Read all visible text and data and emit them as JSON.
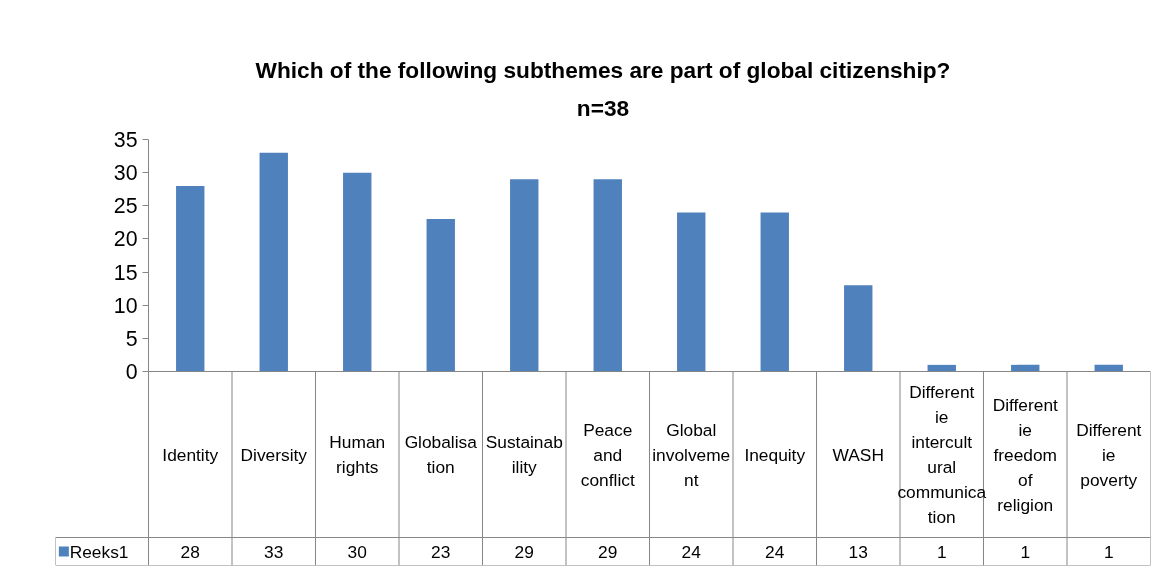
{
  "chart_data": {
    "type": "bar",
    "title": "Which of the following subthemes are part of global citizenship?",
    "subtitle": "n=38",
    "categories": [
      "Identity",
      "Diversity",
      "Human rights",
      "Globalisation",
      "Sustainability",
      "Peace and conflict",
      "Global involvement",
      "Inequity",
      "WASH",
      "Differentie intercultural communication",
      "Differentie freedom of religion",
      "Differentie poverty"
    ],
    "series": [
      {
        "name": "Reeks1",
        "color": "#4f81bd",
        "values": [
          28,
          33,
          30,
          23,
          29,
          29,
          24,
          24,
          13,
          1,
          1,
          1
        ]
      }
    ],
    "ylim": [
      0,
      35
    ],
    "yticks": [
      0,
      5,
      10,
      15,
      20,
      25,
      30,
      35
    ],
    "grid": false,
    "legend": "bottom",
    "data_labels": true
  }
}
